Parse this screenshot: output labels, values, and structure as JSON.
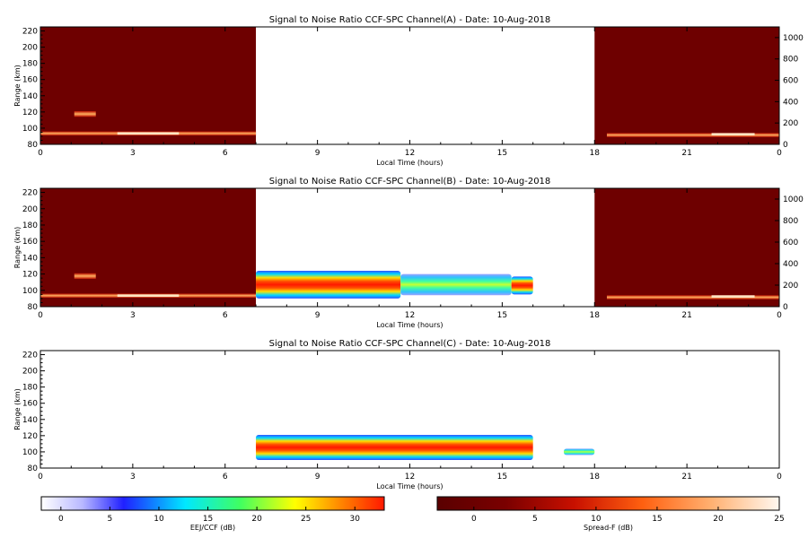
{
  "panels": [
    {
      "title": "Signal to Noise Ratio CCF-SPC Channel(A) - Date: 10-Aug-2018",
      "xlabel": "Local Time (hours)",
      "ylabel": "Range (km)",
      "x_ticks": [
        "0",
        "3",
        "6",
        "9",
        "12",
        "15",
        "18",
        "21",
        "0"
      ],
      "y_ticks": [
        "80",
        "100",
        "120",
        "140",
        "160",
        "180",
        "200",
        "220"
      ],
      "right_ticks": [
        "0",
        "200",
        "400",
        "600",
        "800",
        "1000"
      ]
    },
    {
      "title": "Signal to Noise Ratio CCF-SPC Channel(B) - Date: 10-Aug-2018",
      "xlabel": "Local Time (hours)",
      "ylabel": "Range (km)",
      "x_ticks": [
        "0",
        "3",
        "6",
        "9",
        "12",
        "15",
        "18",
        "21",
        "0"
      ],
      "y_ticks": [
        "80",
        "100",
        "120",
        "140",
        "160",
        "180",
        "200",
        "220"
      ],
      "right_ticks": [
        "0",
        "200",
        "400",
        "600",
        "800",
        "1000"
      ]
    },
    {
      "title": "Signal to Noise Ratio CCF-SPC Channel(C) - Date: 10-Aug-2018",
      "xlabel": "Local Time (hours)",
      "ylabel": "Range (km)",
      "x_ticks": [
        "0",
        "3",
        "6",
        "9",
        "12",
        "15",
        "18",
        "21",
        "0"
      ],
      "y_ticks": [
        "80",
        "100",
        "120",
        "140",
        "160",
        "180",
        "200",
        "220"
      ],
      "right_ticks": []
    }
  ],
  "colorbars": [
    {
      "label": "EEJ/CCF (dB)",
      "ticks": [
        "0",
        "5",
        "10",
        "15",
        "20",
        "25",
        "30"
      ],
      "range": [
        -2,
        33
      ]
    },
    {
      "label": "Spread-F (dB)",
      "ticks": [
        "0",
        "5",
        "10",
        "15",
        "20",
        "25"
      ],
      "range": [
        -3,
        25
      ]
    }
  ],
  "chart_data": [
    {
      "type": "heatmap",
      "title": "Signal to Noise Ratio CCF-SPC Channel(A) - Date: 10-Aug-2018",
      "xlabel": "Local Time (hours)",
      "ylabel": "Range (km)",
      "xlim": [
        0,
        24
      ],
      "ylim": [
        80,
        225
      ],
      "right_axis_lim": [
        0,
        1100
      ],
      "spread_f_blocks": [
        {
          "x": [
            0,
            7.0
          ]
        },
        {
          "x": [
            18.0,
            24
          ]
        }
      ],
      "spread_f_layers": [
        {
          "x": [
            0,
            7.0
          ],
          "y": [
            91,
            96
          ],
          "snr": 9
        },
        {
          "x": [
            2.5,
            4.5
          ],
          "y": [
            92,
            95
          ],
          "snr": 18
        },
        {
          "x": [
            1.1,
            1.8
          ],
          "y": [
            114,
            121
          ],
          "snr": 6
        },
        {
          "x": [
            18.4,
            24
          ],
          "y": [
            89,
            94
          ],
          "snr": 9
        },
        {
          "x": [
            21.8,
            23.2
          ],
          "y": [
            91,
            94
          ],
          "snr": 18
        }
      ],
      "eej_layers": []
    },
    {
      "type": "heatmap",
      "title": "Signal to Noise Ratio CCF-SPC Channel(B) - Date: 10-Aug-2018",
      "xlabel": "Local Time (hours)",
      "ylabel": "Range (km)",
      "xlim": [
        0,
        24
      ],
      "ylim": [
        80,
        225
      ],
      "right_axis_lim": [
        0,
        1100
      ],
      "spread_f_blocks": [
        {
          "x": [
            0,
            7.0
          ]
        },
        {
          "x": [
            18.0,
            24
          ]
        }
      ],
      "spread_f_layers": [
        {
          "x": [
            0,
            7.0
          ],
          "y": [
            91,
            96
          ],
          "snr": 9
        },
        {
          "x": [
            2.5,
            4.5
          ],
          "y": [
            92,
            95
          ],
          "snr": 18
        },
        {
          "x": [
            1.1,
            1.8
          ],
          "y": [
            114,
            121
          ],
          "snr": 6
        },
        {
          "x": [
            18.4,
            24
          ],
          "y": [
            89,
            94
          ],
          "snr": 9
        },
        {
          "x": [
            21.8,
            23.2
          ],
          "y": [
            91,
            94
          ],
          "snr": 18
        }
      ],
      "eej_layers": [
        {
          "x": [
            7.0,
            11.7
          ],
          "y": [
            90,
            124
          ],
          "peak_snr": 32
        },
        {
          "x": [
            11.7,
            15.3
          ],
          "y": [
            94,
            120
          ],
          "peak_snr": 14
        },
        {
          "x": [
            15.3,
            16.0
          ],
          "y": [
            95,
            117
          ],
          "peak_snr": 30
        }
      ]
    },
    {
      "type": "heatmap",
      "title": "Signal to Noise Ratio CCF-SPC Channel(C) - Date: 10-Aug-2018",
      "xlabel": "Local Time (hours)",
      "ylabel": "Range (km)",
      "xlim": [
        0,
        24
      ],
      "ylim": [
        80,
        225
      ],
      "spread_f_blocks": [],
      "spread_f_layers": [],
      "eej_layers": [
        {
          "x": [
            7.0,
            16.0
          ],
          "y": [
            90,
            121
          ],
          "peak_snr": 31
        },
        {
          "x": [
            17.0,
            18.0
          ],
          "y": [
            96,
            104
          ],
          "peak_snr": 14
        }
      ]
    }
  ]
}
